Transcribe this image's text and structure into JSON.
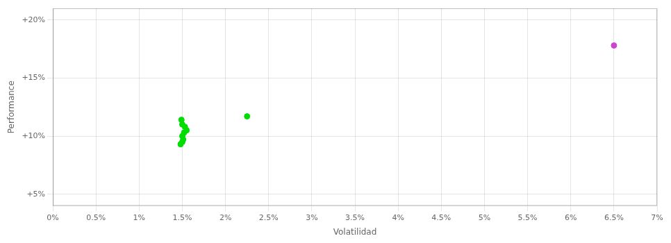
{
  "chart_data": {
    "type": "scatter",
    "xlabel": "Volatilidad",
    "ylabel": "Performance",
    "xlim": [
      0.0,
      0.07
    ],
    "ylim": [
      0.04,
      0.21
    ],
    "xticks": [
      {
        "value": 0.0,
        "label": "0%"
      },
      {
        "value": 0.005,
        "label": "0.5%"
      },
      {
        "value": 0.01,
        "label": "1%"
      },
      {
        "value": 0.015,
        "label": "1.5%"
      },
      {
        "value": 0.02,
        "label": "2%"
      },
      {
        "value": 0.025,
        "label": "2.5%"
      },
      {
        "value": 0.03,
        "label": "3%"
      },
      {
        "value": 0.035,
        "label": "3.5%"
      },
      {
        "value": 0.04,
        "label": "4%"
      },
      {
        "value": 0.045,
        "label": "4.5%"
      },
      {
        "value": 0.05,
        "label": "5%"
      },
      {
        "value": 0.055,
        "label": "5.5%"
      },
      {
        "value": 0.06,
        "label": "6%"
      },
      {
        "value": 0.065,
        "label": "6.5%"
      },
      {
        "value": 0.07,
        "label": "7%"
      }
    ],
    "yticks": [
      {
        "value": 0.05,
        "label": "+5%"
      },
      {
        "value": 0.1,
        "label": "+10%"
      },
      {
        "value": 0.15,
        "label": "+15%"
      },
      {
        "value": 0.2,
        "label": "+20%"
      }
    ],
    "grid": true,
    "series": [
      {
        "color": "#00dd00",
        "x": [
          0.0148,
          0.015,
          0.0151,
          0.015,
          0.0152,
          0.0155,
          0.0153,
          0.015,
          0.0149,
          0.0225
        ],
        "values": [
          0.093,
          0.095,
          0.097,
          0.1,
          0.103,
          0.105,
          0.108,
          0.11,
          0.114,
          0.117
        ]
      },
      {
        "color": "#cc44cc",
        "x": [
          0.065
        ],
        "values": [
          0.178
        ]
      }
    ]
  }
}
